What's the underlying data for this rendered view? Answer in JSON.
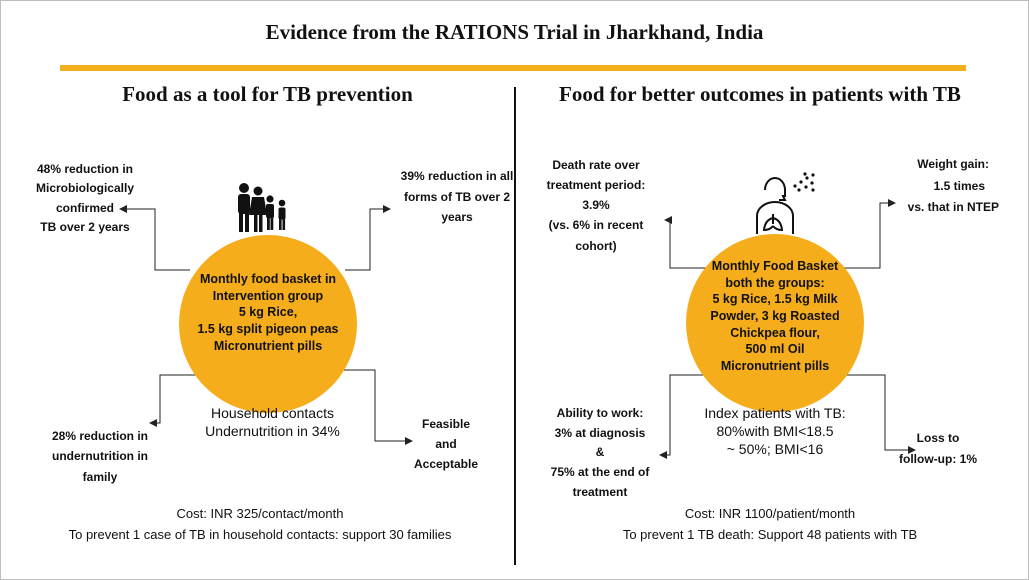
{
  "title": "Evidence from the RATIONS Trial in Jharkhand, India",
  "colors": {
    "accent": "#F2B01E",
    "circle": "#F5AD1B"
  },
  "left": {
    "heading": "Food as a tool for TB prevention",
    "icon": "family-icon",
    "circle_lines": [
      "Monthly food basket in",
      "Intervention group",
      "5 kg Rice,",
      "1.5 kg split pigeon peas",
      "Micronutrient pills"
    ],
    "top_left_lines": [
      "48% reduction in",
      "Microbiologically",
      "confirmed",
      "TB over 2 years"
    ],
    "top_right_lines": [
      "39% reduction in all",
      "forms of TB over 2",
      "years"
    ],
    "bottom_left_lines": [
      "28% reduction in",
      "undernutrition in",
      "family"
    ],
    "bottom_right_lines": [
      "Feasible",
      "and",
      "Acceptable"
    ],
    "contacts_lines": [
      "Household contacts",
      "Undernutrition in 34%"
    ],
    "footer_lines": [
      "Cost: INR 325/contact/month",
      "To prevent 1 case of TB in household contacts: support 30 families"
    ]
  },
  "right": {
    "heading": "Food for better outcomes in patients with TB",
    "icon": "lungs-patient-icon",
    "circle_lines": [
      "Monthly Food Basket",
      "both the groups:",
      "5 kg Rice, 1.5 kg Milk",
      "Powder, 3 kg Roasted",
      "Chickpea flour,",
      "500 ml Oil",
      "Micronutrient pills"
    ],
    "top_left_lines": [
      "Death rate over",
      "treatment period:",
      "3.9%",
      "(vs. 6% in recent",
      "cohort)"
    ],
    "top_right_lines": [
      "Weight gain:",
      "1.5 times",
      "vs. that in NTEP"
    ],
    "bottom_left_lines": [
      "Ability to work:",
      "3% at diagnosis",
      "&",
      "75% at the end of",
      "treatment"
    ],
    "bottom_right_lines": [
      "Loss to",
      "follow-up: 1%"
    ],
    "patients_lines": [
      "Index patients with TB:",
      "80%with BMI<18.5",
      "~ 50%; BMI<16"
    ],
    "footer_lines": [
      "Cost: INR 1100/patient/month",
      "To prevent 1 TB death: Support 48 patients with TB"
    ]
  }
}
